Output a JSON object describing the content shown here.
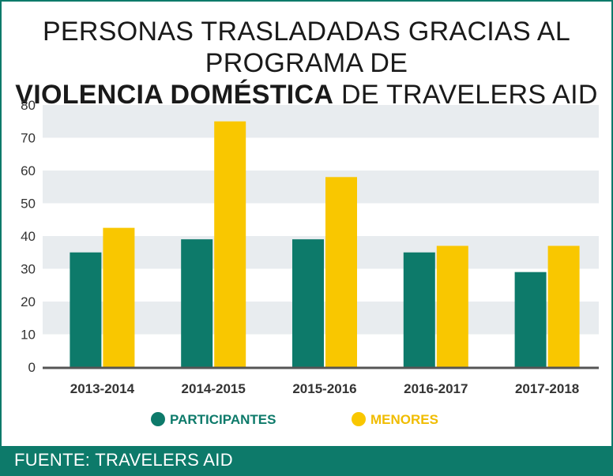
{
  "header": {
    "title_line1": "PERSONAS TRASLADADAS GRACIAS AL PROGRAMA DE",
    "title_bold": "VIOLENCIA DOMÉSTICA",
    "title_rest": " DE TRAVELERS AID"
  },
  "footer": {
    "source": "FUENTE: TRAVELERS AID"
  },
  "colors": {
    "participantes": "#0d7a6a",
    "menores": "#f9c700",
    "band": "#e8ecef",
    "axis": "#555555",
    "legend_text": "#0d7a6a",
    "legend_text_menores": "#f0bc00"
  },
  "chart_data": {
    "type": "bar",
    "title": "PERSONAS TRASLADADAS GRACIAS AL PROGRAMA DE VIOLENCIA DOMÉSTICA DE TRAVELERS AID",
    "categories": [
      "2013-2014",
      "2014-2015",
      "2015-2016",
      "2016-2017",
      "2017-2018"
    ],
    "series": [
      {
        "name": "PARTICIPANTES",
        "values": [
          35,
          39,
          39,
          35,
          29
        ]
      },
      {
        "name": "MENORES",
        "values": [
          42.5,
          75,
          58,
          37,
          37
        ]
      }
    ],
    "yticks": [
      0,
      10,
      20,
      30,
      40,
      50,
      60,
      70,
      80
    ],
    "ylim": [
      0,
      80
    ],
    "xlabel": "",
    "ylabel": "",
    "legend_position": "bottom-center"
  }
}
